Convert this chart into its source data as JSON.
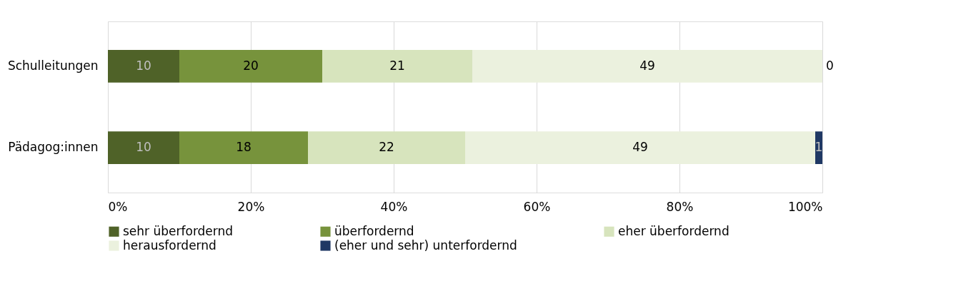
{
  "chart_data": {
    "type": "bar",
    "orientation": "horizontal",
    "stacked": true,
    "categories": [
      "Schulleitungen",
      "Pädagog:innen"
    ],
    "series": [
      {
        "name": "sehr überfordernd",
        "color": "#4f6228",
        "values": [
          10,
          10
        ]
      },
      {
        "name": "überfordernd",
        "color": "#77933c",
        "values": [
          20,
          18
        ]
      },
      {
        "name": "eher überfordernd",
        "color": "#d7e4bd",
        "values": [
          21,
          22
        ]
      },
      {
        "name": "herausfordernd",
        "color": "#ebf1de",
        "values": [
          49,
          49
        ]
      },
      {
        "name": "(eher und sehr) unterfordernd",
        "color": "#1f3864",
        "values": [
          0,
          1
        ]
      }
    ],
    "xlim": [
      0,
      100
    ],
    "xticks": [
      {
        "value": 0,
        "label": "0%"
      },
      {
        "value": 20,
        "label": "20%"
      },
      {
        "value": 40,
        "label": "40%"
      },
      {
        "value": 60,
        "label": "60%"
      },
      {
        "value": 80,
        "label": "80%"
      },
      {
        "value": 100,
        "label": "100%"
      }
    ],
    "grid": "x",
    "legend": "bottom",
    "data_labels": true
  }
}
